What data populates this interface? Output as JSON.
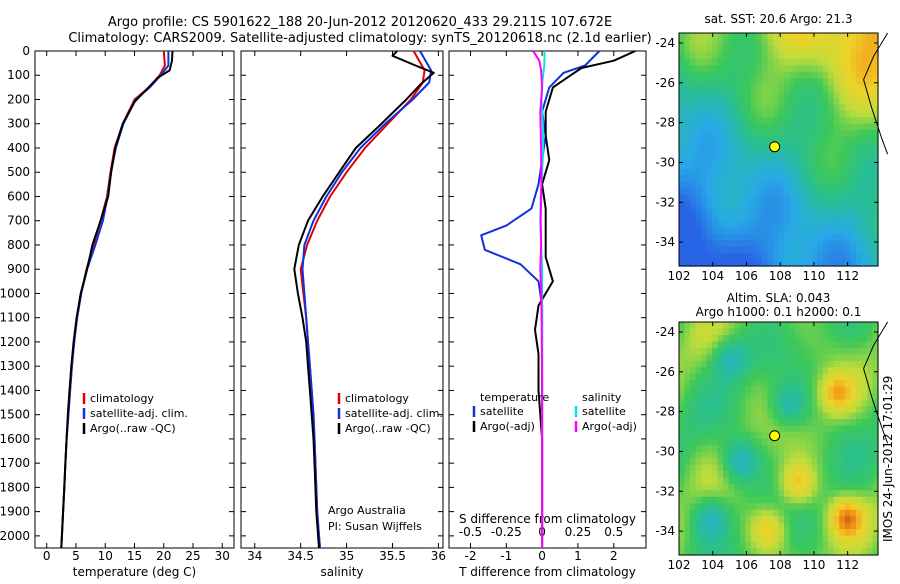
{
  "header": {
    "line1": "Argo profile: CS 5901622_188 20-Jun-2012 20120620_433 29.211S 107.672E",
    "line2": "Climatology: CARS2009. Satellite-adjusted climatology: synTS_20120618.nc (2.1d earlier)"
  },
  "colors": {
    "climatology": "#e00000",
    "satellite": "#1030e0",
    "argo": "#000000",
    "sal_satellite": "#00e5e5",
    "sal_argo": "#ff00ff"
  },
  "chart_data": [
    {
      "type": "line",
      "xlabel": "temperature (deg C)",
      "xticks": [
        0,
        5,
        10,
        15,
        20,
        25,
        30
      ],
      "xlim": [
        -2,
        32
      ],
      "ylim": [
        0,
        2050
      ],
      "yticks": [
        0,
        100,
        200,
        300,
        400,
        500,
        600,
        700,
        800,
        900,
        1000,
        1100,
        1200,
        1300,
        1400,
        1500,
        1600,
        1700,
        1800,
        1900,
        2000
      ],
      "y_reversed": true,
      "legend_position": "bottom-center",
      "legend": [
        "climatology",
        "satellite-adj. clim.",
        "Argo(..raw -QC)"
      ],
      "series": [
        {
          "name": "climatology",
          "color": "climatology",
          "points": [
            [
              20.0,
              0
            ],
            [
              20.2,
              60
            ],
            [
              19.3,
              100
            ],
            [
              17.5,
              150
            ],
            [
              15.0,
              200
            ],
            [
              13.0,
              300
            ],
            [
              11.6,
              400
            ],
            [
              10.9,
              500
            ],
            [
              10.3,
              600
            ],
            [
              9.2,
              700
            ],
            [
              8.0,
              800
            ],
            [
              6.8,
              900
            ],
            [
              5.9,
              1000
            ],
            [
              5.2,
              1100
            ],
            [
              4.7,
              1200
            ],
            [
              4.3,
              1300
            ],
            [
              4.0,
              1400
            ],
            [
              3.7,
              1500
            ],
            [
              3.4,
              1600
            ],
            [
              3.2,
              1700
            ],
            [
              3.0,
              1800
            ],
            [
              2.8,
              1900
            ],
            [
              2.6,
              2000
            ],
            [
              2.5,
              2050
            ]
          ]
        },
        {
          "name": "satellite-adj. clim.",
          "color": "satellite",
          "points": [
            [
              20.8,
              0
            ],
            [
              20.8,
              60
            ],
            [
              19.5,
              100
            ],
            [
              17.6,
              150
            ],
            [
              15.2,
              200
            ],
            [
              13.1,
              300
            ],
            [
              11.8,
              400
            ],
            [
              11.0,
              500
            ],
            [
              10.4,
              600
            ],
            [
              9.6,
              700
            ],
            [
              8.3,
              800
            ],
            [
              6.9,
              900
            ],
            [
              5.9,
              1000
            ],
            [
              5.2,
              1100
            ],
            [
              4.7,
              1200
            ],
            [
              4.3,
              1300
            ],
            [
              4.0,
              1400
            ],
            [
              3.7,
              1500
            ],
            [
              3.4,
              1600
            ],
            [
              3.2,
              1700
            ],
            [
              3.0,
              1800
            ],
            [
              2.8,
              1900
            ],
            [
              2.6,
              2000
            ],
            [
              2.5,
              2050
            ]
          ]
        },
        {
          "name": "Argo(..raw -QC)",
          "color": "argo",
          "points": [
            [
              21.5,
              0
            ],
            [
              21.4,
              40
            ],
            [
              21.0,
              80
            ],
            [
              19.0,
              110
            ],
            [
              17.0,
              160
            ],
            [
              15.0,
              210
            ],
            [
              13.0,
              300
            ],
            [
              11.7,
              400
            ],
            [
              11.0,
              500
            ],
            [
              10.5,
              600
            ],
            [
              9.2,
              700
            ],
            [
              7.8,
              800
            ],
            [
              6.9,
              900
            ],
            [
              5.8,
              1000
            ],
            [
              5.1,
              1100
            ],
            [
              4.6,
              1200
            ],
            [
              4.2,
              1300
            ],
            [
              3.9,
              1400
            ],
            [
              3.6,
              1500
            ],
            [
              3.4,
              1600
            ],
            [
              3.2,
              1700
            ],
            [
              3.0,
              1800
            ],
            [
              2.8,
              1900
            ],
            [
              2.6,
              2000
            ],
            [
              2.5,
              2050
            ]
          ]
        }
      ]
    },
    {
      "type": "line",
      "xlabel": "salinity",
      "xticks": [
        34,
        34.5,
        35,
        35.5,
        36
      ],
      "xlim": [
        33.85,
        36.05
      ],
      "ylim": [
        0,
        2050
      ],
      "y_reversed": true,
      "legend_position": "bottom-right",
      "legend": [
        "climatology",
        "satellite-adj. clim.",
        "Argo(..raw -QC)"
      ],
      "annotation": [
        "Argo Australia",
        "PI: Susan Wijffels"
      ],
      "series": [
        {
          "name": "climatology",
          "color": "climatology",
          "points": [
            [
              35.73,
              0
            ],
            [
              35.85,
              80
            ],
            [
              35.83,
              130
            ],
            [
              35.7,
              200
            ],
            [
              35.45,
              300
            ],
            [
              35.2,
              400
            ],
            [
              35.0,
              500
            ],
            [
              34.82,
              600
            ],
            [
              34.68,
              700
            ],
            [
              34.57,
              800
            ],
            [
              34.5,
              900
            ],
            [
              34.53,
              1000
            ],
            [
              34.56,
              1100
            ],
            [
              34.58,
              1200
            ],
            [
              34.6,
              1300
            ],
            [
              34.62,
              1400
            ],
            [
              34.64,
              1500
            ],
            [
              34.65,
              1600
            ],
            [
              34.66,
              1700
            ],
            [
              34.67,
              1800
            ],
            [
              34.68,
              1900
            ],
            [
              34.7,
              2000
            ],
            [
              34.71,
              2050
            ]
          ]
        },
        {
          "name": "satellite-adj. clim.",
          "color": "satellite",
          "points": [
            [
              35.8,
              0
            ],
            [
              35.92,
              80
            ],
            [
              35.9,
              130
            ],
            [
              35.72,
              200
            ],
            [
              35.42,
              300
            ],
            [
              35.15,
              400
            ],
            [
              34.95,
              500
            ],
            [
              34.78,
              600
            ],
            [
              34.64,
              700
            ],
            [
              34.54,
              800
            ],
            [
              34.52,
              900
            ],
            [
              34.54,
              1000
            ],
            [
              34.56,
              1100
            ],
            [
              34.58,
              1200
            ],
            [
              34.6,
              1300
            ],
            [
              34.62,
              1400
            ],
            [
              34.64,
              1500
            ],
            [
              34.65,
              1600
            ],
            [
              34.66,
              1700
            ],
            [
              34.67,
              1800
            ],
            [
              34.68,
              1900
            ],
            [
              34.7,
              2000
            ],
            [
              34.71,
              2050
            ]
          ]
        },
        {
          "name": "Argo(..raw -QC)",
          "color": "argo",
          "points": [
            [
              35.55,
              0
            ],
            [
              35.5,
              20
            ],
            [
              35.75,
              60
            ],
            [
              35.95,
              90
            ],
            [
              35.8,
              140
            ],
            [
              35.65,
              200
            ],
            [
              35.38,
              300
            ],
            [
              35.1,
              400
            ],
            [
              34.92,
              500
            ],
            [
              34.74,
              600
            ],
            [
              34.58,
              700
            ],
            [
              34.48,
              800
            ],
            [
              34.43,
              900
            ],
            [
              34.47,
              1000
            ],
            [
              34.52,
              1100
            ],
            [
              34.56,
              1200
            ],
            [
              34.58,
              1300
            ],
            [
              34.6,
              1400
            ],
            [
              34.62,
              1500
            ],
            [
              34.64,
              1600
            ],
            [
              34.65,
              1700
            ],
            [
              34.66,
              1800
            ],
            [
              34.67,
              1900
            ],
            [
              34.69,
              2000
            ],
            [
              34.7,
              2050
            ]
          ]
        }
      ]
    },
    {
      "type": "line",
      "xlabel": "T difference from climatology",
      "xlabel_top": "S difference from climatology",
      "xticks": [
        -2,
        -1,
        0,
        1,
        2
      ],
      "xticks_s": [
        "-0.5",
        "-0.25",
        "0",
        "0.25",
        "0.5"
      ],
      "xlim": [
        -2.6,
        2.9
      ],
      "ylim": [
        0,
        2050
      ],
      "y_reversed": true,
      "legend_position": "middle",
      "legend_groups": [
        {
          "title": "temperature",
          "items": [
            "satellite",
            "Argo(-adj)"
          ]
        },
        {
          "title": "salinity",
          "items": [
            "satellite",
            "Argo(-adj)"
          ]
        }
      ],
      "series": [
        {
          "name": "temperature satellite",
          "color": "satellite",
          "points": [
            [
              1.6,
              0
            ],
            [
              1.2,
              60
            ],
            [
              0.6,
              90
            ],
            [
              0.2,
              150
            ],
            [
              0.0,
              250
            ],
            [
              0.1,
              350
            ],
            [
              0.0,
              450
            ],
            [
              -0.1,
              550
            ],
            [
              -0.3,
              650
            ],
            [
              -1.0,
              720
            ],
            [
              -1.7,
              760
            ],
            [
              -1.6,
              820
            ],
            [
              -0.6,
              880
            ],
            [
              -0.1,
              950
            ],
            [
              0.0,
              1050
            ],
            [
              0.0,
              1200
            ],
            [
              0.0,
              1500
            ],
            [
              0.0,
              2050
            ]
          ]
        },
        {
          "name": "temperature Argo(-adj)",
          "color": "argo",
          "points": [
            [
              2.6,
              0
            ],
            [
              2.0,
              40
            ],
            [
              1.1,
              70
            ],
            [
              0.8,
              100
            ],
            [
              0.3,
              150
            ],
            [
              0.1,
              250
            ],
            [
              0.1,
              350
            ],
            [
              0.2,
              450
            ],
            [
              0.0,
              550
            ],
            [
              0.1,
              650
            ],
            [
              0.1,
              750
            ],
            [
              0.1,
              850
            ],
            [
              0.3,
              950
            ],
            [
              -0.1,
              1050
            ],
            [
              -0.2,
              1150
            ],
            [
              -0.1,
              1250
            ],
            [
              -0.1,
              1400
            ],
            [
              0.0,
              1600
            ],
            [
              0.0,
              2050
            ]
          ]
        },
        {
          "name": "salinity satellite",
          "color": "sal_satellite",
          "points": [
            [
              0.07,
              0
            ],
            [
              0.06,
              60
            ],
            [
              0.01,
              120
            ],
            [
              -0.02,
              200
            ],
            [
              0.02,
              300
            ],
            [
              0.03,
              400
            ],
            [
              0.0,
              500
            ],
            [
              -0.04,
              600
            ],
            [
              -0.05,
              700
            ],
            [
              -0.03,
              800
            ],
            [
              0.0,
              900
            ],
            [
              0.0,
              1000
            ],
            [
              0.0,
              1200
            ],
            [
              0.0,
              2050
            ]
          ]
        },
        {
          "name": "salinity Argo(-adj)",
          "color": "sal_argo",
          "points": [
            [
              -0.25,
              0
            ],
            [
              -0.08,
              40
            ],
            [
              -0.03,
              80
            ],
            [
              0.0,
              150
            ],
            [
              -0.05,
              250
            ],
            [
              -0.03,
              400
            ],
            [
              -0.02,
              550
            ],
            [
              -0.04,
              700
            ],
            [
              -0.03,
              800
            ],
            [
              -0.05,
              900
            ],
            [
              -0.02,
              1000
            ],
            [
              -0.01,
              1200
            ],
            [
              0.0,
              1400
            ],
            [
              0.0,
              2050
            ]
          ]
        }
      ]
    },
    {
      "type": "heatmap",
      "title": "sat. SST: 20.6 Argo: 21.3",
      "xticks": [
        102,
        104,
        106,
        108,
        110,
        112
      ],
      "yticks": [
        -24,
        -26,
        -28,
        -30,
        -32,
        -34
      ],
      "xlim": [
        102,
        113.8
      ],
      "ylim": [
        -35.2,
        -23.5
      ],
      "marker": [
        107.67,
        -29.21
      ]
    },
    {
      "type": "heatmap",
      "title": [
        "Altim. SLA: 0.043",
        "Argo h1000: 0.1 h2000: 0.1"
      ],
      "xticks": [
        102,
        104,
        106,
        108,
        110,
        112
      ],
      "yticks": [
        -24,
        -26,
        -28,
        -30,
        -32,
        -34
      ],
      "xlim": [
        102,
        113.8
      ],
      "ylim": [
        -35.2,
        -23.5
      ],
      "marker": [
        107.67,
        -29.21
      ]
    }
  ],
  "footer": {
    "stamp": "IMOS 24-Jun-2012 17:01:29"
  }
}
